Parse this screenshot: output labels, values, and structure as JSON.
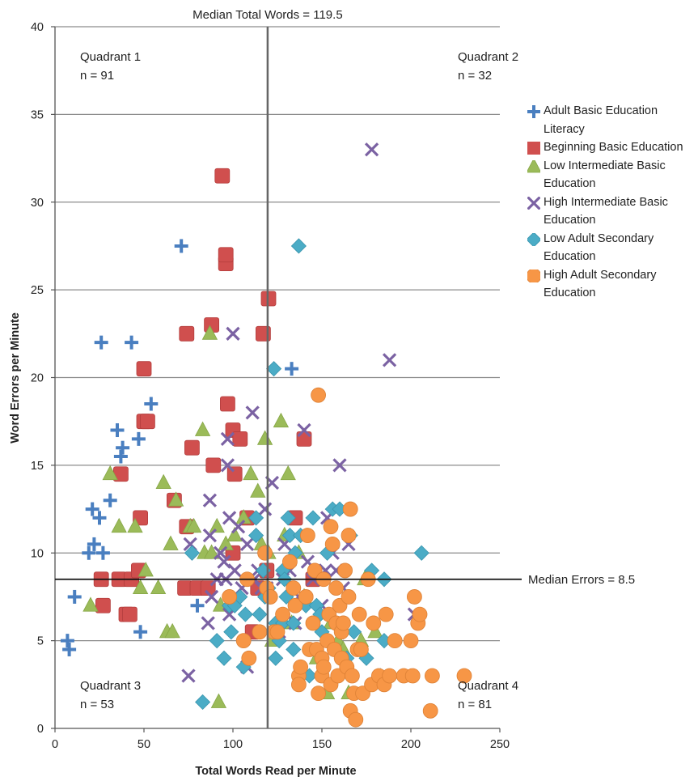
{
  "chart_data": {
    "type": "scatter",
    "xlabel": "Total Words Read per Minute",
    "ylabel": "Word Errors per Minute",
    "xlim": [
      0,
      250
    ],
    "ylim": [
      0,
      40
    ],
    "xticks": [
      "0",
      "50",
      "100",
      "150",
      "200",
      "250"
    ],
    "yticks": [
      "0",
      "5",
      "10",
      "15",
      "20",
      "25",
      "30",
      "35",
      "40"
    ],
    "grid": "horizontal",
    "legend_position": "right",
    "median_x": {
      "value": 119.5,
      "label": "Median Total Words = 119.5"
    },
    "median_y": {
      "value": 8.5,
      "label": "Median Errors = 8.5"
    },
    "quadrants": [
      {
        "name": "Quadrant 1",
        "n": "n =  91",
        "position": "top-left"
      },
      {
        "name": "Quadrant 2",
        "n": "n =  32",
        "position": "top-right"
      },
      {
        "name": "Quadrant 3",
        "n": "n =  53",
        "position": "bottom-left"
      },
      {
        "name": "Quadrant 4",
        "n": "n =  81",
        "position": "bottom-right"
      }
    ],
    "series": [
      {
        "name": "Adult Basic Education Literacy",
        "marker": "plus",
        "color": "#4a7fc0",
        "points": [
          [
            7,
            5
          ],
          [
            8,
            4.5
          ],
          [
            11,
            7.5
          ],
          [
            21,
            12.5
          ],
          [
            22,
            10.5
          ],
          [
            25,
            12
          ],
          [
            26,
            22
          ],
          [
            27,
            10
          ],
          [
            19,
            10
          ],
          [
            31,
            13
          ],
          [
            35,
            17
          ],
          [
            37,
            15.5
          ],
          [
            38,
            16
          ],
          [
            43,
            22
          ],
          [
            47,
            16.5
          ],
          [
            48,
            5.5
          ],
          [
            54,
            18.5
          ],
          [
            71,
            27.5
          ],
          [
            80,
            7
          ],
          [
            133,
            20.5
          ]
        ]
      },
      {
        "name": "Beginning Basic Education",
        "marker": "square",
        "color": "#d04f4e",
        "points": [
          [
            26,
            8.5
          ],
          [
            27,
            7
          ],
          [
            36,
            8.5
          ],
          [
            37,
            14.5
          ],
          [
            40,
            6.5
          ],
          [
            42,
            6.5
          ],
          [
            43,
            8.5
          ],
          [
            47,
            9
          ],
          [
            48,
            12
          ],
          [
            50,
            17.5
          ],
          [
            50,
            20.5
          ],
          [
            52,
            17.5
          ],
          [
            67,
            13
          ],
          [
            73,
            8
          ],
          [
            74,
            11.5
          ],
          [
            74,
            22.5
          ],
          [
            77,
            16
          ],
          [
            80,
            8
          ],
          [
            86,
            8
          ],
          [
            88,
            23
          ],
          [
            89,
            15
          ],
          [
            94,
            31.5
          ],
          [
            96,
            26.5
          ],
          [
            96,
            27
          ],
          [
            97,
            18.5
          ],
          [
            100,
            17
          ],
          [
            100,
            10
          ],
          [
            101,
            14.5
          ],
          [
            104,
            16.5
          ],
          [
            108,
            12
          ],
          [
            111,
            5.5
          ],
          [
            114,
            8
          ],
          [
            117,
            22.5
          ],
          [
            119,
            9
          ],
          [
            120,
            24.5
          ],
          [
            135,
            12
          ],
          [
            140,
            16.5
          ],
          [
            145,
            8.5
          ]
        ]
      },
      {
        "name": "Low Intermediate Basic Education",
        "marker": "triangle",
        "color": "#9bbb59",
        "points": [
          [
            20,
            7
          ],
          [
            31,
            14.5
          ],
          [
            36,
            11.5
          ],
          [
            45,
            11.5
          ],
          [
            48,
            8
          ],
          [
            51,
            9
          ],
          [
            58,
            8
          ],
          [
            61,
            14
          ],
          [
            63,
            5.5
          ],
          [
            65,
            10.5
          ],
          [
            66,
            5.5
          ],
          [
            68,
            13
          ],
          [
            76,
            11.5
          ],
          [
            78,
            11.5
          ],
          [
            83,
            17
          ],
          [
            84,
            10
          ],
          [
            87,
            22.5
          ],
          [
            88,
            10
          ],
          [
            91,
            11.5
          ],
          [
            92,
            1.5
          ],
          [
            93,
            7
          ],
          [
            96,
            10.5
          ],
          [
            101,
            11
          ],
          [
            106,
            12
          ],
          [
            110,
            14.5
          ],
          [
            114,
            13.5
          ],
          [
            116,
            10.5
          ],
          [
            118,
            16.5
          ],
          [
            120,
            10
          ],
          [
            122,
            5
          ],
          [
            127,
            17.5
          ],
          [
            129,
            11
          ],
          [
            131,
            14.5
          ],
          [
            133,
            6
          ],
          [
            137,
            10
          ],
          [
            140,
            7.5
          ],
          [
            147,
            4
          ],
          [
            153,
            2
          ],
          [
            155,
            6
          ],
          [
            159,
            5
          ],
          [
            162,
            4.5
          ],
          [
            165,
            2
          ],
          [
            172,
            5
          ],
          [
            174,
            8.5
          ],
          [
            180,
            5.5
          ]
        ]
      },
      {
        "name": "High Intermediate Basic Education",
        "marker": "x",
        "color": "#7b62a3",
        "points": [
          [
            76,
            10.5
          ],
          [
            75,
            3
          ],
          [
            86,
            6
          ],
          [
            87,
            13
          ],
          [
            87,
            11
          ],
          [
            88,
            7.5
          ],
          [
            91,
            8.5
          ],
          [
            93,
            10
          ],
          [
            95,
            9.5
          ],
          [
            96,
            8.5
          ],
          [
            97,
            15
          ],
          [
            97,
            16.5
          ],
          [
            98,
            6.5
          ],
          [
            98,
            12
          ],
          [
            100,
            22.5
          ],
          [
            101,
            9
          ],
          [
            103,
            11.5
          ],
          [
            105,
            8
          ],
          [
            108,
            3.5
          ],
          [
            108,
            10.5
          ],
          [
            111,
            18
          ],
          [
            112,
            8.5
          ],
          [
            114,
            9
          ],
          [
            116,
            8
          ],
          [
            118,
            12.5
          ],
          [
            119,
            8
          ],
          [
            122,
            14
          ],
          [
            126,
            5.5
          ],
          [
            128,
            8.5
          ],
          [
            129,
            10.5
          ],
          [
            132,
            9
          ],
          [
            135,
            6
          ],
          [
            137,
            7.5
          ],
          [
            140,
            17
          ],
          [
            142,
            9.5
          ],
          [
            145,
            8.5
          ],
          [
            150,
            7
          ],
          [
            152,
            9
          ],
          [
            153,
            12
          ],
          [
            156,
            10
          ],
          [
            158,
            9
          ],
          [
            160,
            15
          ],
          [
            162,
            8
          ],
          [
            165,
            10.5
          ],
          [
            178,
            33
          ],
          [
            188,
            21
          ],
          [
            202,
            6.5
          ]
        ]
      },
      {
        "name": "Low Adult Secondary Education",
        "marker": "diamond",
        "color": "#4bacc6",
        "points": [
          [
            77,
            10
          ],
          [
            83,
            1.5
          ],
          [
            91,
            5
          ],
          [
            95,
            4
          ],
          [
            98,
            7
          ],
          [
            99,
            5.5
          ],
          [
            101,
            7
          ],
          [
            104,
            7.5
          ],
          [
            106,
            3.5
          ],
          [
            107,
            6.5
          ],
          [
            113,
            12
          ],
          [
            113,
            11
          ],
          [
            115,
            6.5
          ],
          [
            117,
            9
          ],
          [
            118,
            7.5
          ],
          [
            120,
            8
          ],
          [
            121,
            7.5
          ],
          [
            123,
            20.5
          ],
          [
            124,
            4
          ],
          [
            124,
            6
          ],
          [
            126,
            5
          ],
          [
            128,
            9
          ],
          [
            128,
            6
          ],
          [
            129,
            8.5
          ],
          [
            130,
            7.5
          ],
          [
            131,
            12
          ],
          [
            132,
            11
          ],
          [
            134,
            4.5
          ],
          [
            134,
            6
          ],
          [
            135,
            10
          ],
          [
            137,
            27.5
          ],
          [
            138,
            11
          ],
          [
            141,
            7
          ],
          [
            143,
            3
          ],
          [
            145,
            12
          ],
          [
            147,
            7
          ],
          [
            149,
            6.5
          ],
          [
            150,
            5.5
          ],
          [
            153,
            10
          ],
          [
            156,
            12.5
          ],
          [
            160,
            12.5
          ],
          [
            162,
            5.5
          ],
          [
            164,
            4
          ],
          [
            166,
            11
          ],
          [
            168,
            5.5
          ],
          [
            175,
            4
          ],
          [
            178,
            9
          ],
          [
            183,
            3
          ],
          [
            185,
            8.5
          ],
          [
            185,
            5
          ],
          [
            206,
            10
          ]
        ]
      },
      {
        "name": "High Adult Secondary Education",
        "marker": "circle",
        "color": "#f79646",
        "points": [
          [
            98,
            7.5
          ],
          [
            106,
            5
          ],
          [
            108,
            8.5
          ],
          [
            109,
            4
          ],
          [
            115,
            5.5
          ],
          [
            118,
            10
          ],
          [
            119,
            8
          ],
          [
            121,
            7.5
          ],
          [
            123,
            5.5
          ],
          [
            125,
            5.5
          ],
          [
            128,
            6.5
          ],
          [
            132,
            9.5
          ],
          [
            134,
            8
          ],
          [
            135,
            7
          ],
          [
            137,
            3
          ],
          [
            137,
            2.5
          ],
          [
            138,
            3.5
          ],
          [
            141,
            7.5
          ],
          [
            142,
            11
          ],
          [
            143,
            4.5
          ],
          [
            145,
            6
          ],
          [
            146,
            9
          ],
          [
            147,
            4.5
          ],
          [
            148,
            19
          ],
          [
            148,
            2
          ],
          [
            150,
            4
          ],
          [
            150,
            3
          ],
          [
            151,
            3.5
          ],
          [
            151,
            8.5
          ],
          [
            153,
            5
          ],
          [
            154,
            6.5
          ],
          [
            155,
            2.5
          ],
          [
            155,
            11.5
          ],
          [
            156,
            10.5
          ],
          [
            157,
            4.5
          ],
          [
            158,
            8
          ],
          [
            158,
            6
          ],
          [
            159,
            3
          ],
          [
            160,
            7
          ],
          [
            161,
            5.5
          ],
          [
            161,
            4
          ],
          [
            162,
            6
          ],
          [
            163,
            9
          ],
          [
            164,
            3.5
          ],
          [
            165,
            7.5
          ],
          [
            165,
            11
          ],
          [
            166,
            12.5
          ],
          [
            166,
            1
          ],
          [
            167,
            3
          ],
          [
            168,
            2
          ],
          [
            169,
            0.5
          ],
          [
            170,
            4.5
          ],
          [
            171,
            6.5
          ],
          [
            172,
            4.5
          ],
          [
            173,
            2
          ],
          [
            176,
            8.5
          ],
          [
            178,
            2.5
          ],
          [
            179,
            6
          ],
          [
            182,
            3
          ],
          [
            185,
            2.5
          ],
          [
            186,
            6.5
          ],
          [
            188,
            3
          ],
          [
            191,
            5
          ],
          [
            196,
            3
          ],
          [
            200,
            5
          ],
          [
            201,
            3
          ],
          [
            202,
            7.5
          ],
          [
            204,
            6
          ],
          [
            205,
            6.5
          ],
          [
            211,
            1
          ],
          [
            212,
            3
          ],
          [
            230,
            3
          ]
        ]
      }
    ]
  }
}
